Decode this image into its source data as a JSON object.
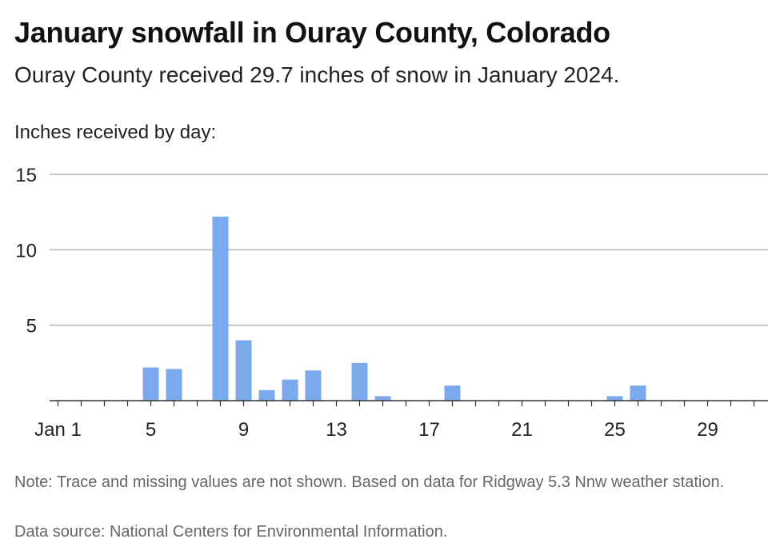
{
  "title": "January snowfall in Ouray County, Colorado",
  "subtitle": "Ouray County received 29.7 inches of snow in January 2024.",
  "notes": "Note: Trace and missing values are not shown. Based on data for Ridgway 5.3 Nnw weather station.",
  "source": "Data source: National Centers for Environmental Information.",
  "colors": {
    "bar": "#7ba9ed",
    "grid": "#b3b3b3",
    "axis": "#333333"
  },
  "chart_data": {
    "type": "bar",
    "ylabel": "Inches received by day:",
    "xlabel": "",
    "ylim": [
      0,
      15
    ],
    "yticks": [
      5,
      10,
      15
    ],
    "xticks": [
      {
        "day": 1,
        "label": "Jan 1"
      },
      {
        "day": 5,
        "label": "5"
      },
      {
        "day": 9,
        "label": "9"
      },
      {
        "day": 13,
        "label": "13"
      },
      {
        "day": 17,
        "label": "17"
      },
      {
        "day": 21,
        "label": "21"
      },
      {
        "day": 25,
        "label": "25"
      },
      {
        "day": 29,
        "label": "29"
      }
    ],
    "grid": true,
    "series": [
      {
        "values": [
          {
            "day": 5,
            "inches": 2.2
          },
          {
            "day": 6,
            "inches": 2.1
          },
          {
            "day": 8,
            "inches": 12.2
          },
          {
            "day": 9,
            "inches": 4.0
          },
          {
            "day": 10,
            "inches": 0.7
          },
          {
            "day": 11,
            "inches": 1.4
          },
          {
            "day": 12,
            "inches": 2.0
          },
          {
            "day": 14,
            "inches": 2.5
          },
          {
            "day": 15,
            "inches": 0.3
          },
          {
            "day": 18,
            "inches": 1.0
          },
          {
            "day": 25,
            "inches": 0.3
          },
          {
            "day": 26,
            "inches": 1.0
          }
        ]
      }
    ]
  }
}
